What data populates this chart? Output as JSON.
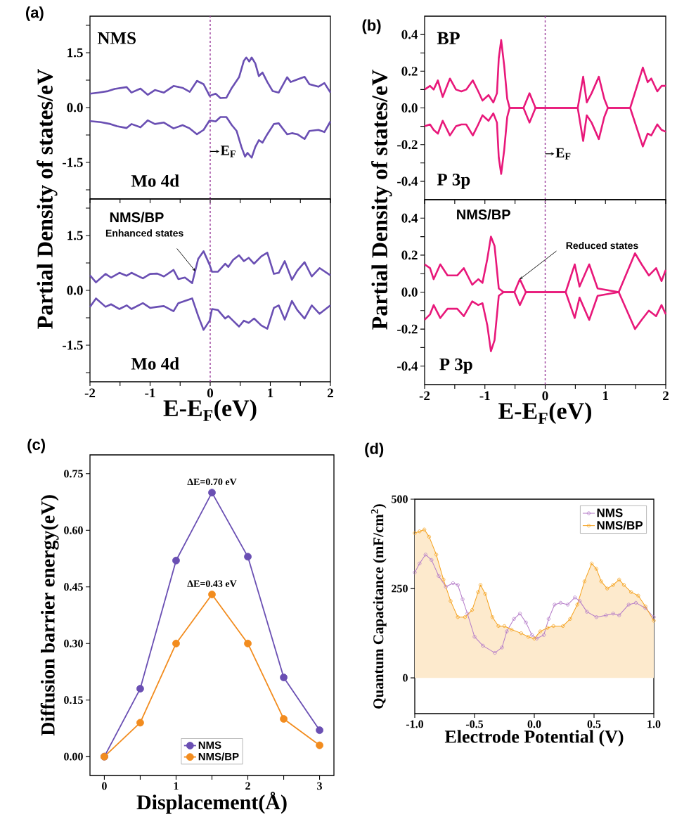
{
  "chart_data": [
    {
      "type": "line",
      "title": "(a)",
      "ylabel": "Partial Density of states/eV",
      "annotations": [
        "NMS",
        "Mo 4d"
      ],
      "xlim": [
        -2,
        2
      ],
      "ylim": [
        -2.5,
        2.5
      ],
      "xticks": [
        -2,
        {
          "value": -1.5,
          "label": null
        },
        -1,
        {
          "value": -0.5,
          "label": null
        },
        0,
        {
          "value": 0.5,
          "label": null
        },
        1,
        {
          "value": 1.5,
          "label": null
        },
        2
      ],
      "yticks": [
        {
          "value": -2.25,
          "label": null
        },
        {
          "value": -1.5,
          "label": "-1.5"
        },
        {
          "value": -0.75,
          "label": null
        },
        {
          "value": 0,
          "label": "0.0"
        },
        {
          "value": 0.75,
          "label": null
        },
        {
          "value": 1.5,
          "label": "1.5"
        },
        {
          "value": 2.25,
          "label": null
        }
      ],
      "tick_labels": "y",
      "ref_lines": [
        {
          "axis": "x",
          "value": 0,
          "label": "E$_{F}$",
          "color": "#9b3d9b",
          "line_style": "dashed"
        }
      ],
      "series": [
        {
          "color": "#6a4fb3",
          "x": [
            -2.0,
            -1.86,
            -1.7,
            -1.59,
            -1.39,
            -1.31,
            -1.16,
            -1.04,
            -0.92,
            -0.77,
            -0.61,
            -0.46,
            -0.34,
            -0.22,
            -0.11,
            -0.01,
            0.09,
            0.17,
            0.27,
            0.36,
            0.48,
            0.56,
            0.6,
            0.65,
            0.69,
            0.75,
            0.81,
            0.87,
            0.95,
            1.04,
            1.14,
            1.28,
            1.34,
            1.45,
            1.57,
            1.65,
            1.8,
            1.9,
            2.0
          ],
          "values": [
            0.38,
            0.41,
            0.45,
            0.51,
            0.56,
            0.41,
            0.52,
            0.35,
            0.48,
            0.41,
            0.59,
            0.54,
            0.43,
            0.73,
            0.64,
            0.32,
            0.38,
            0.26,
            0.27,
            0.54,
            0.83,
            1.28,
            1.37,
            1.26,
            1.37,
            1.21,
            0.86,
            0.96,
            0.7,
            0.45,
            0.41,
            0.83,
            0.7,
            0.77,
            0.84,
            0.64,
            0.57,
            0.67,
            0.41
          ]
        },
        {
          "color": "#6a4fb3",
          "x": [
            -2.0,
            -1.82,
            -1.66,
            -1.55,
            -1.39,
            -1.31,
            -1.16,
            -1.04,
            -0.92,
            -0.77,
            -0.61,
            -0.46,
            -0.34,
            -0.22,
            -0.11,
            -0.01,
            0.09,
            0.17,
            0.27,
            0.36,
            0.44,
            0.52,
            0.58,
            0.62,
            0.69,
            0.75,
            0.81,
            0.87,
            0.95,
            1.06,
            1.14,
            1.28,
            1.36,
            1.45,
            1.57,
            1.65,
            1.8,
            1.9,
            2.0
          ],
          "values": [
            -0.37,
            -0.4,
            -0.45,
            -0.51,
            -0.56,
            -0.45,
            -0.54,
            -0.35,
            -0.45,
            -0.41,
            -0.57,
            -0.48,
            -0.57,
            -0.73,
            -0.61,
            -0.35,
            -0.38,
            -0.26,
            -0.26,
            -0.48,
            -0.64,
            -1.08,
            -1.34,
            -1.24,
            -1.37,
            -1.08,
            -0.89,
            -0.96,
            -0.73,
            -0.45,
            -0.43,
            -0.73,
            -0.7,
            -0.73,
            -0.86,
            -0.64,
            -0.61,
            -0.67,
            -0.38
          ]
        }
      ]
    },
    {
      "type": "line",
      "title": "(b)",
      "ylabel": "Partial Density of states/eV",
      "annotations": [
        "BP",
        "P 3p"
      ],
      "xlim": [
        -2,
        2
      ],
      "ylim": [
        -0.5,
        0.5
      ],
      "xticks": [
        -2,
        {
          "value": -1.5,
          "label": null
        },
        -1,
        {
          "value": -0.5,
          "label": null
        },
        0,
        {
          "value": 0.5,
          "label": null
        },
        1,
        {
          "value": 1.5,
          "label": null
        },
        2
      ],
      "yticks": [
        {
          "value": -0.4,
          "label": "-0.4"
        },
        {
          "value": -0.3,
          "label": null
        },
        {
          "value": -0.2,
          "label": "-0.2"
        },
        {
          "value": -0.1,
          "label": null
        },
        {
          "value": 0,
          "label": "0.0"
        },
        {
          "value": 0.1,
          "label": null
        },
        {
          "value": 0.2,
          "label": "0.2"
        },
        {
          "value": 0.3,
          "label": null
        },
        {
          "value": 0.4,
          "label": "0.4"
        }
      ],
      "tick_labels": "y",
      "ref_lines": [
        {
          "axis": "x",
          "value": 0,
          "label": "E$_{F}$",
          "color": "#9b3d9b",
          "line_style": "dashed"
        }
      ],
      "x": [
        -2.0,
        -1.91,
        -1.85,
        -1.78,
        -1.7,
        -1.58,
        -1.48,
        -1.39,
        -1.31,
        -1.2,
        -1.11,
        -1.04,
        -0.94,
        -0.86,
        -0.8,
        -0.77,
        -0.73,
        -0.68,
        -0.63,
        -0.59,
        -0.36,
        -0.26,
        -0.16,
        0.54,
        0.63,
        0.69,
        0.77,
        0.89,
        0.98,
        1.04,
        1.41,
        1.62,
        1.7,
        1.76,
        1.86,
        1.93,
        2.0
      ],
      "series": [
        {
          "color": "#e8187a",
          "values": [
            0.1,
            0.12,
            0.1,
            0.15,
            0.06,
            0.16,
            0.1,
            0.09,
            0.1,
            0.15,
            0.09,
            0.04,
            0.07,
            0.03,
            0.08,
            0.27,
            0.37,
            0.23,
            0.05,
            0,
            0,
            0.08,
            0,
            0,
            0.17,
            0.03,
            0.08,
            0.17,
            0.05,
            0,
            0,
            0.22,
            0.14,
            0.16,
            0.09,
            0.12,
            0.12
          ]
        },
        {
          "color": "#e8187a",
          "values": [
            -0.1,
            -0.09,
            -0.12,
            -0.14,
            -0.07,
            -0.15,
            -0.1,
            -0.09,
            -0.09,
            -0.15,
            -0.09,
            -0.04,
            -0.07,
            -0.03,
            -0.08,
            -0.27,
            -0.36,
            -0.23,
            -0.05,
            0,
            0,
            -0.08,
            0,
            0,
            -0.18,
            -0.04,
            -0.08,
            -0.17,
            -0.05,
            0,
            0,
            -0.21,
            -0.14,
            -0.15,
            -0.09,
            -0.12,
            -0.13
          ]
        }
      ]
    },
    {
      "type": "line",
      "xlabel": "E-E$_{F}$(eV)",
      "annotations": [
        "NMS/BP",
        "Mo 4d",
        {
          "text": "Enhanced states",
          "x": -0.25,
          "y": 0.53
        }
      ],
      "xlim": [
        -2,
        2
      ],
      "ylim": [
        -2.5,
        2.5
      ],
      "xticks": [
        -2,
        {
          "value": -1.5,
          "label": null
        },
        -1,
        {
          "value": -0.5,
          "label": null
        },
        0,
        {
          "value": 0.5,
          "label": null
        },
        1,
        {
          "value": 1.5,
          "label": null
        },
        2
      ],
      "yticks": [
        {
          "value": -2.25,
          "label": null
        },
        {
          "value": -1.5,
          "label": "-1.5"
        },
        {
          "value": -0.75,
          "label": null
        },
        {
          "value": 0,
          "label": "0.0"
        },
        {
          "value": 0.75,
          "label": null
        },
        {
          "value": 1.5,
          "label": "1.5"
        },
        {
          "value": 2.25,
          "label": null
        }
      ],
      "ref_lines": [
        {
          "axis": "x",
          "value": 0,
          "color": "#9b3d9b",
          "line_style": "dashed"
        }
      ],
      "x": [
        -2.0,
        -1.9,
        -1.74,
        -1.65,
        -1.51,
        -1.39,
        -1.31,
        -1.12,
        -1.0,
        -0.88,
        -0.77,
        -0.61,
        -0.53,
        -0.42,
        -0.3,
        -0.2,
        -0.11,
        -0.01,
        0.03,
        0.13,
        0.25,
        0.3,
        0.38,
        0.48,
        0.56,
        0.64,
        0.73,
        0.85,
        0.95,
        1.06,
        1.14,
        1.24,
        1.36,
        1.45,
        1.57,
        1.69,
        1.82,
        2.0
      ],
      "series": [
        {
          "color": "#6a4fb3",
          "values": [
            0.41,
            0.22,
            0.45,
            0.35,
            0.48,
            0.4,
            0.48,
            0.33,
            0.45,
            0.46,
            0.38,
            0.56,
            0.31,
            0.35,
            0.2,
            0.86,
            1.07,
            0.7,
            0.51,
            0.51,
            0.73,
            0.64,
            0.83,
            0.96,
            0.8,
            0.89,
            0.73,
            0.93,
            1.03,
            0.45,
            0.48,
            0.8,
            0.29,
            0.54,
            0.77,
            0.38,
            0.61,
            0.41
          ]
        },
        {
          "color": "#6a4fb3",
          "values": [
            -0.45,
            -0.22,
            -0.45,
            -0.38,
            -0.51,
            -0.41,
            -0.51,
            -0.35,
            -0.48,
            -0.45,
            -0.43,
            -0.57,
            -0.35,
            -0.29,
            -0.22,
            -0.7,
            -1.08,
            -0.83,
            -0.51,
            -0.54,
            -0.77,
            -0.7,
            -0.83,
            -0.99,
            -0.83,
            -0.89,
            -0.77,
            -0.96,
            -1.05,
            -0.48,
            -0.41,
            -0.8,
            -0.29,
            -0.54,
            -0.77,
            -0.41,
            -0.64,
            -0.41
          ]
        }
      ]
    },
    {
      "type": "line",
      "xlabel": "E-E$_{F}$(eV)",
      "annotations": [
        "NMS/BP",
        "P 3p",
        {
          "text": "Reduced states",
          "x": -0.42,
          "y": 0.07
        }
      ],
      "xlim": [
        -2,
        2
      ],
      "ylim": [
        -0.5,
        0.5
      ],
      "xticks": [
        -2,
        {
          "value": -1.5,
          "label": null
        },
        -1,
        {
          "value": -0.5,
          "label": null
        },
        0,
        {
          "value": 0.5,
          "label": null
        },
        1,
        {
          "value": 1.5,
          "label": null
        },
        2
      ],
      "yticks": [
        {
          "value": -0.4,
          "label": "-0.4"
        },
        {
          "value": -0.3,
          "label": null
        },
        {
          "value": -0.2,
          "label": "-0.2"
        },
        {
          "value": -0.1,
          "label": null
        },
        {
          "value": 0,
          "label": "0.0"
        },
        {
          "value": 0.1,
          "label": null
        },
        {
          "value": 0.2,
          "label": "0.2"
        },
        {
          "value": 0.3,
          "label": null
        },
        {
          "value": 0.4,
          "label": "0.4"
        }
      ],
      "ref_lines": [
        {
          "axis": "x",
          "value": 0,
          "color": "#9b3d9b",
          "line_style": "dashed"
        }
      ],
      "x": [
        -2.0,
        -1.91,
        -1.85,
        -1.74,
        -1.62,
        -1.54,
        -1.46,
        -1.35,
        -1.21,
        -1.11,
        -1.04,
        -0.96,
        -0.9,
        -0.84,
        -0.77,
        -0.69,
        -0.51,
        -0.42,
        -0.32,
        0.34,
        0.49,
        0.57,
        0.73,
        0.87,
        1.22,
        1.49,
        1.6,
        1.72,
        1.84,
        1.93,
        2.0
      ],
      "series": [
        {
          "color": "#e8187a",
          "values": [
            0.15,
            0.13,
            0.07,
            0.15,
            0.09,
            0.09,
            0.09,
            0.13,
            0.04,
            0.07,
            0.05,
            0.18,
            0.3,
            0.25,
            0.02,
            0,
            0,
            0.07,
            0,
            0,
            0.15,
            0.03,
            0.15,
            0.02,
            0,
            0.21,
            0.15,
            0.09,
            0.13,
            0.06,
            0.12
          ]
        },
        {
          "color": "#e8187a",
          "values": [
            -0.15,
            -0.12,
            -0.07,
            -0.14,
            -0.09,
            -0.09,
            -0.09,
            -0.13,
            -0.05,
            -0.07,
            -0.06,
            -0.18,
            -0.32,
            -0.26,
            -0.02,
            0,
            0,
            -0.07,
            0,
            0,
            -0.14,
            -0.03,
            -0.15,
            -0.02,
            0,
            -0.2,
            -0.15,
            -0.1,
            -0.13,
            -0.07,
            -0.12
          ]
        }
      ]
    },
    {
      "type": "line",
      "title": "(c)",
      "xlabel": "Displacement(Å)",
      "ylabel": "Diffusion barrier energy(eV)",
      "x": [
        0,
        0.5,
        1,
        1.5,
        2,
        2.5,
        3
      ],
      "xlim": [
        -0.2,
        3.2
      ],
      "ylim": [
        -0.05,
        0.8
      ],
      "xticks": [
        0,
        {
          "value": 0.5,
          "label": null
        },
        1,
        {
          "value": 1.5,
          "label": null
        },
        2,
        {
          "value": 2.5,
          "label": null
        },
        3
      ],
      "yticks": [
        {
          "value": 0,
          "label": "0.00"
        },
        {
          "value": 0.15,
          "label": "0.15"
        },
        {
          "value": 0.3,
          "label": "0.30"
        },
        {
          "value": 0.45,
          "label": "0.45"
        },
        {
          "value": 0.6,
          "label": "0.60"
        },
        {
          "value": 0.75,
          "label": "0.75"
        }
      ],
      "legend": "bottom",
      "marker": "circle",
      "annotations": [
        {
          "text": "ΔE=0.70 eV",
          "x": 1.5,
          "y": 0.7
        },
        {
          "text": "ΔE=0.43 eV",
          "x": 1.5,
          "y": 0.43
        }
      ],
      "series": [
        {
          "name": "NMS",
          "color": "#6a4fb3",
          "values": [
            0,
            0.18,
            0.52,
            0.7,
            0.53,
            0.21,
            0.07
          ]
        },
        {
          "name": "NMS/BP",
          "color": "#f28c1e",
          "values": [
            0,
            0.09,
            0.3,
            0.43,
            0.3,
            0.1,
            0.03
          ]
        }
      ]
    },
    {
      "type": "line",
      "title": "(d)",
      "xlabel": "Electrode Potential (V)",
      "ylabel": "Quantum Capacitance (mF/cm$^{2}$)",
      "xlim": [
        -1,
        1
      ],
      "ylim": [
        -100,
        500
      ],
      "xticks": [
        {
          "value": -1,
          "label": "-1.0"
        },
        {
          "value": -0.5,
          "label": "-0.5"
        },
        {
          "value": 0,
          "label": "0.0"
        },
        {
          "value": 0.5,
          "label": "0.5"
        },
        {
          "value": 1,
          "label": "1.0"
        }
      ],
      "yticks": [
        0,
        250,
        500
      ],
      "legend": "top right",
      "marker": "circle",
      "series": [
        {
          "name": "NMS",
          "color": "#b47bc8",
          "x": [
            -1.0,
            -0.96,
            -0.91,
            -0.86,
            -0.8,
            -0.74,
            -0.68,
            -0.64,
            -0.6,
            -0.56,
            -0.5,
            -0.43,
            -0.33,
            -0.27,
            -0.23,
            -0.17,
            -0.12,
            -0.07,
            -0.02,
            0.02,
            0.08,
            0.12,
            0.17,
            0.22,
            0.28,
            0.34,
            0.38,
            0.44,
            0.52,
            0.6,
            0.66,
            0.71,
            0.79,
            0.85,
            0.93,
            1.0
          ],
          "values": [
            295,
            320,
            345,
            330,
            285,
            255,
            265,
            260,
            220,
            180,
            115,
            90,
            70,
            85,
            130,
            165,
            180,
            155,
            120,
            110,
            120,
            165,
            205,
            210,
            205,
            225,
            215,
            185,
            170,
            175,
            180,
            175,
            205,
            210,
            195,
            170
          ]
        },
        {
          "name": "NMS/BP",
          "type": "area",
          "color": "#f5a11c",
          "x": [
            -1.0,
            -0.96,
            -0.92,
            -0.88,
            -0.82,
            -0.76,
            -0.7,
            -0.64,
            -0.58,
            -0.52,
            -0.47,
            -0.45,
            -0.41,
            -0.35,
            -0.3,
            -0.25,
            -0.19,
            -0.11,
            -0.05,
            0.0,
            0.05,
            0.11,
            0.16,
            0.24,
            0.3,
            0.36,
            0.42,
            0.48,
            0.52,
            0.56,
            0.61,
            0.66,
            0.71,
            0.75,
            0.81,
            0.87,
            0.93,
            1.0
          ],
          "values": [
            405,
            410,
            415,
            395,
            345,
            275,
            215,
            170,
            170,
            190,
            240,
            260,
            235,
            170,
            145,
            145,
            135,
            125,
            115,
            110,
            130,
            140,
            145,
            145,
            165,
            205,
            270,
            320,
            305,
            270,
            250,
            260,
            275,
            260,
            240,
            230,
            200,
            160
          ]
        }
      ]
    }
  ]
}
